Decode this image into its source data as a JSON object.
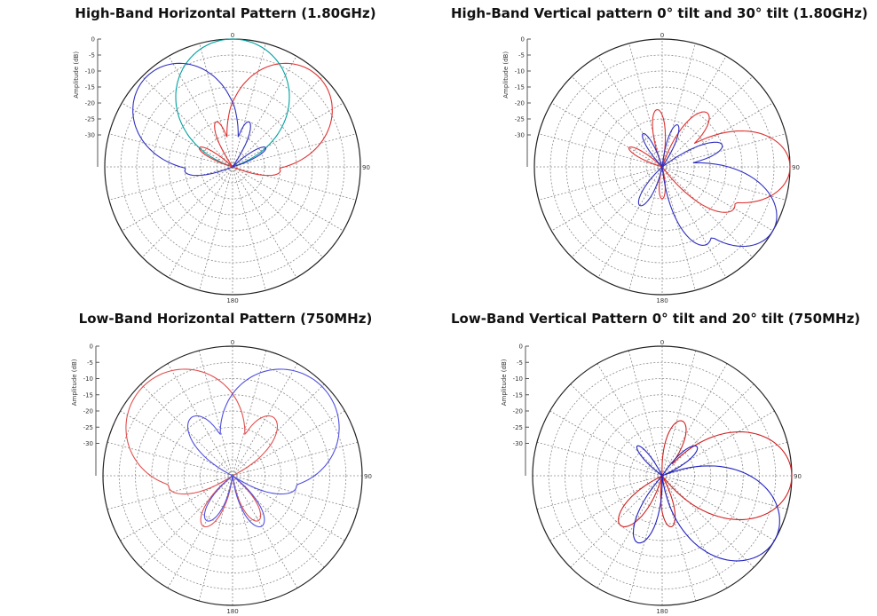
{
  "chart_data": [
    {
      "type": "polar",
      "title": "High-Band Horizontal Pattern (1.80GHz)",
      "ylabel": "Amplitude (dB)",
      "rticks": [
        "0",
        "-5",
        "-10",
        "-15",
        "-20",
        "-25",
        "-30"
      ],
      "angle_labels": {
        "top": "0",
        "right": "90",
        "bottom": "180"
      },
      "rlim": [
        -40,
        0
      ],
      "grid": true,
      "series": [
        {
          "color": "#00a0a0",
          "lobes": [
            [
              0,
              0,
              30
            ],
            [
              20,
              -14,
              12
            ],
            [
              -20,
              -14,
              12
            ],
            [
              40,
              -24,
              10
            ],
            [
              -40,
              -24,
              10
            ]
          ]
        },
        {
          "color": "#e03030",
          "lobes": [
            [
              43,
              -1,
              26
            ],
            [
              95,
              -25,
              12
            ],
            [
              5,
              -18,
              10
            ],
            [
              -20,
              -25,
              10
            ],
            [
              -60,
              -28,
              10
            ]
          ]
        },
        {
          "color": "#3030c0",
          "lobes": [
            [
              -43,
              -1,
              26
            ],
            [
              -95,
              -25,
              12
            ],
            [
              -5,
              -18,
              10
            ],
            [
              20,
              -25,
              10
            ],
            [
              60,
              -28,
              10
            ]
          ]
        }
      ]
    },
    {
      "type": "polar",
      "title": "High-Band Vertical pattern 0° tilt and 30° tilt (1.80GHz)",
      "ylabel": "Amplitude (dB)",
      "rticks": [
        "0",
        "-5",
        "-10",
        "-15",
        "-20",
        "-25",
        "-30"
      ],
      "angle_labels": {
        "top": "0",
        "right": "90",
        "bottom": "180"
      },
      "rlim": [
        -40,
        0
      ],
      "grid": true,
      "series": [
        {
          "color": "#e03030",
          "lobes": [
            [
              90,
              0,
              18
            ],
            [
              120,
              -14,
              12
            ],
            [
              40,
              -18,
              12
            ],
            [
              -5,
              -22,
              10
            ],
            [
              -60,
              -28,
              10
            ],
            [
              180,
              -30,
              12
            ]
          ]
        },
        {
          "color": "#3030c0",
          "lobes": [
            [
              120,
              0,
              18
            ],
            [
              150,
              -12,
              12
            ],
            [
              70,
              -20,
              10
            ],
            [
              20,
              -26,
              10
            ],
            [
              -30,
              -28,
              10
            ],
            [
              -150,
              -26,
              12
            ]
          ]
        }
      ]
    },
    {
      "type": "polar",
      "title": "Low-Band Horizontal Pattern (750MHz)",
      "ylabel": "Amplitude (dB)",
      "rticks": [
        "0",
        "-5",
        "-10",
        "-15",
        "-20",
        "-25",
        "-30"
      ],
      "angle_labels": {
        "top": "0",
        "right": "90",
        "bottom": "180"
      },
      "rlim": [
        -40,
        0
      ],
      "grid": true,
      "series": [
        {
          "color": "#e05050",
          "lobes": [
            [
              -45,
              -1,
              32
            ],
            [
              35,
              -18,
              16
            ],
            [
              -100,
              -20,
              14
            ],
            [
              -150,
              -22,
              14
            ],
            [
              150,
              -24,
              14
            ]
          ]
        },
        {
          "color": "#5050e0",
          "lobes": [
            [
              45,
              -1,
              32
            ],
            [
              -35,
              -18,
              16
            ],
            [
              100,
              -20,
              14
            ],
            [
              150,
              -22,
              14
            ],
            [
              -150,
              -24,
              14
            ]
          ]
        }
      ]
    },
    {
      "type": "polar",
      "title": "Low-Band Vertical Pattern 0° tilt and 20° tilt (750MHz)",
      "ylabel": "Amplitude (dB)",
      "rticks": [
        "0",
        "-5",
        "-10",
        "-15",
        "-20",
        "-25",
        "-30"
      ],
      "angle_labels": {
        "top": "0",
        "right": "90",
        "bottom": "180"
      },
      "rlim": [
        -40,
        0
      ],
      "grid": true,
      "series": [
        {
          "color": "#d02020",
          "lobes": [
            [
              90,
              0,
              22
            ],
            [
              20,
              -22,
              14
            ],
            [
              -140,
              -20,
              14
            ],
            [
              170,
              -24,
              12
            ]
          ]
        },
        {
          "color": "#2020c0",
          "lobes": [
            [
              120,
              0,
              22
            ],
            [
              -160,
              -18,
              12
            ],
            [
              50,
              -26,
              12
            ],
            [
              -40,
              -28,
              10
            ]
          ]
        }
      ]
    }
  ]
}
